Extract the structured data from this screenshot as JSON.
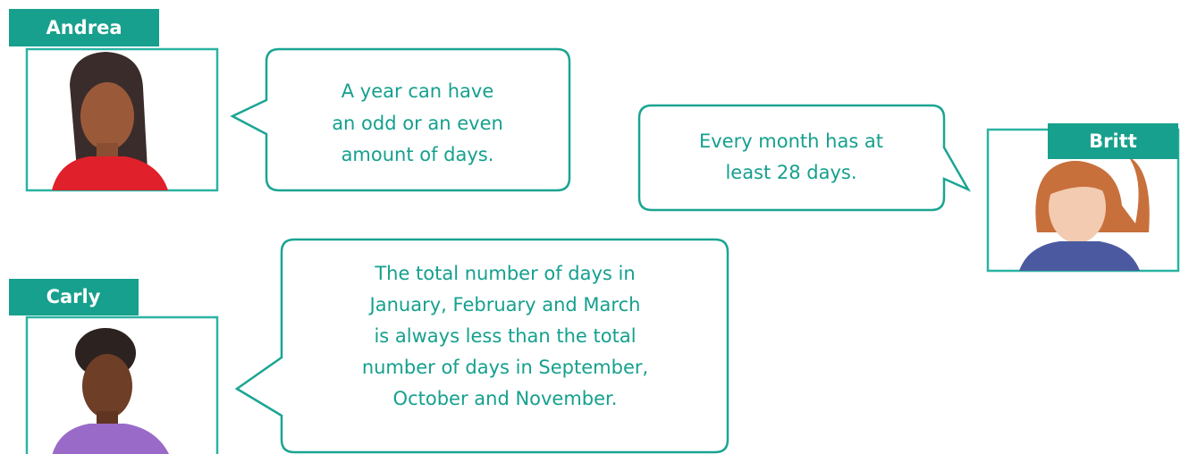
{
  "characters": [
    {
      "name": "Andrea",
      "lines": [
        "A year can have",
        "an odd or an even",
        "amount of days."
      ]
    },
    {
      "name": "Britt",
      "lines": [
        "Every month has at",
        "least 28 days."
      ]
    },
    {
      "name": "Carly",
      "lines": [
        "The total number of days in",
        "January, February and March",
        "is always less than the total",
        "number of days in September,",
        "October and November."
      ]
    }
  ]
}
